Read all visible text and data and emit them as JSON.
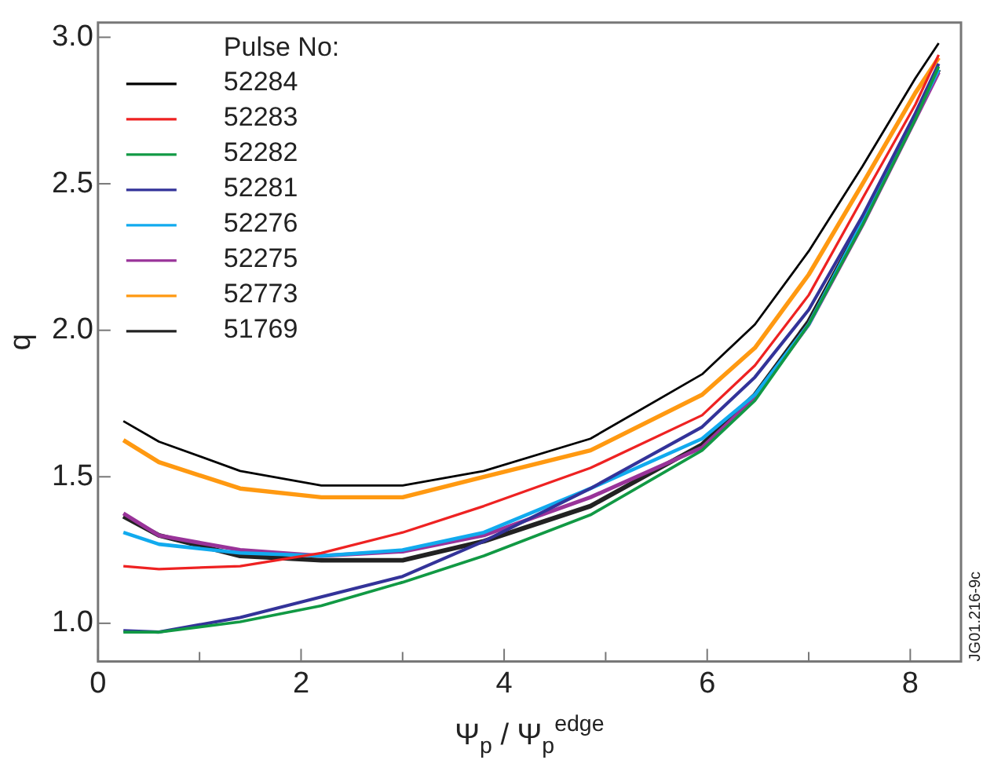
{
  "chart_data": {
    "type": "line",
    "xlabel": "Ψ$_{p}$ / Ψ$_{p}$$^{edge}$",
    "ylabel": "q",
    "legend_title": "Pulse No:",
    "legend": "top left",
    "grid": false,
    "marker": "none",
    "line_style": "solid",
    "x": [
      0.25,
      0.6,
      1.4,
      2.2,
      3.0,
      3.8,
      4.85,
      5.95,
      6.47,
      7.0,
      7.53,
      8.05,
      8.28
    ],
    "xlim": [
      0,
      8.5
    ],
    "ylim": [
      0.87,
      3.05
    ],
    "xticks": [
      0,
      {
        "value": 1,
        "label": null
      },
      2,
      {
        "value": 3,
        "label": null
      },
      4,
      {
        "value": 5,
        "label": null
      },
      6,
      {
        "value": 7,
        "label": null
      },
      8
    ],
    "yticks": [
      {
        "value": 1,
        "label": "1.0"
      },
      1.5,
      {
        "value": 2,
        "label": "2.0"
      },
      2.5,
      {
        "value": 3,
        "label": "3.0"
      }
    ],
    "series": [
      {
        "name": "52284",
        "color": "#000000",
        "values": [
          1.69,
          1.62,
          1.52,
          1.47,
          1.47,
          1.52,
          1.63,
          1.85,
          2.02,
          2.27,
          2.56,
          2.86,
          2.98
        ]
      },
      {
        "name": "52283",
        "color": "#ee2222",
        "values": [
          1.195,
          1.185,
          1.195,
          1.24,
          1.31,
          1.4,
          1.53,
          1.71,
          1.88,
          2.12,
          2.45,
          2.77,
          2.94
        ]
      },
      {
        "name": "52282",
        "color": "#119944",
        "values": [
          0.97,
          0.97,
          1.005,
          1.06,
          1.14,
          1.23,
          1.37,
          1.59,
          1.76,
          2.02,
          2.36,
          2.72,
          2.9
        ]
      },
      {
        "name": "52281",
        "color": "#333399",
        "values": [
          0.975,
          0.97,
          1.02,
          1.09,
          1.16,
          1.28,
          1.46,
          1.67,
          1.84,
          2.07,
          2.39,
          2.74,
          2.91
        ]
      },
      {
        "name": "52276",
        "color": "#11aaee",
        "values": [
          1.31,
          1.27,
          1.24,
          1.23,
          1.25,
          1.31,
          1.46,
          1.63,
          1.78,
          2.02,
          2.37,
          2.73,
          2.89
        ]
      },
      {
        "name": "52275",
        "color": "#993399",
        "values": [
          1.375,
          1.3,
          1.25,
          1.23,
          1.245,
          1.3,
          1.43,
          1.6,
          1.77,
          2.02,
          2.36,
          2.72,
          2.88
        ]
      },
      {
        "name": "52773",
        "color": "#ff9911",
        "values": [
          1.625,
          1.55,
          1.46,
          1.43,
          1.43,
          1.5,
          1.59,
          1.78,
          1.94,
          2.19,
          2.5,
          2.81,
          2.93
        ]
      },
      {
        "name": "51769",
        "color": "#222222",
        "values": [
          1.365,
          1.3,
          1.23,
          1.215,
          1.215,
          1.28,
          1.4,
          1.61,
          1.78,
          2.03,
          2.37,
          2.73,
          2.89
        ]
      }
    ],
    "annotations": [
      "JG01.216-9c"
    ]
  }
}
